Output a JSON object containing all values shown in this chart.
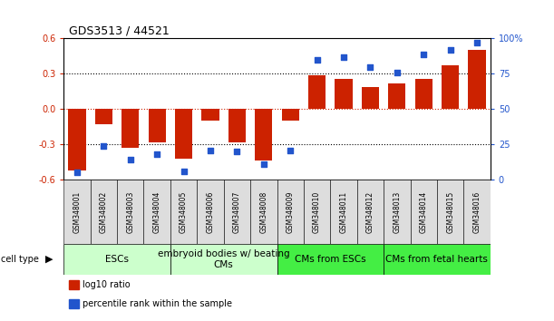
{
  "title": "GDS3513 / 44521",
  "samples": [
    "GSM348001",
    "GSM348002",
    "GSM348003",
    "GSM348004",
    "GSM348005",
    "GSM348006",
    "GSM348007",
    "GSM348008",
    "GSM348009",
    "GSM348010",
    "GSM348011",
    "GSM348012",
    "GSM348013",
    "GSM348014",
    "GSM348015",
    "GSM348016"
  ],
  "log10_ratio": [
    -0.52,
    -0.13,
    -0.33,
    -0.28,
    -0.42,
    -0.1,
    -0.28,
    -0.44,
    -0.1,
    0.29,
    0.26,
    0.19,
    0.22,
    0.26,
    0.37,
    0.5
  ],
  "percentile_rank": [
    5,
    24,
    14,
    18,
    6,
    21,
    20,
    11,
    21,
    85,
    87,
    80,
    76,
    89,
    92,
    97
  ],
  "bar_color": "#cc2200",
  "dot_color": "#2255cc",
  "ylim_left": [
    -0.6,
    0.6
  ],
  "ylim_right": [
    0,
    100
  ],
  "yticks_left": [
    -0.6,
    -0.3,
    0.0,
    0.3,
    0.6
  ],
  "yticks_right": [
    0,
    25,
    50,
    75,
    100
  ],
  "yticklabels_right": [
    "0",
    "25",
    "50",
    "75",
    "100%"
  ],
  "cell_groups": [
    {
      "label": "ESCs",
      "start": 0,
      "end": 3,
      "color": "#ccffcc"
    },
    {
      "label": "embryoid bodies w/ beating\nCMs",
      "start": 4,
      "end": 7,
      "color": "#ccffcc"
    },
    {
      "label": "CMs from ESCs",
      "start": 8,
      "end": 11,
      "color": "#44ee44"
    },
    {
      "label": "CMs from fetal hearts",
      "start": 12,
      "end": 15,
      "color": "#44ee44"
    }
  ],
  "sample_bg_color": "#dddddd",
  "title_fontsize": 9,
  "tick_fontsize": 7,
  "label_fontsize": 7,
  "cell_type_fontsize": 7.5
}
